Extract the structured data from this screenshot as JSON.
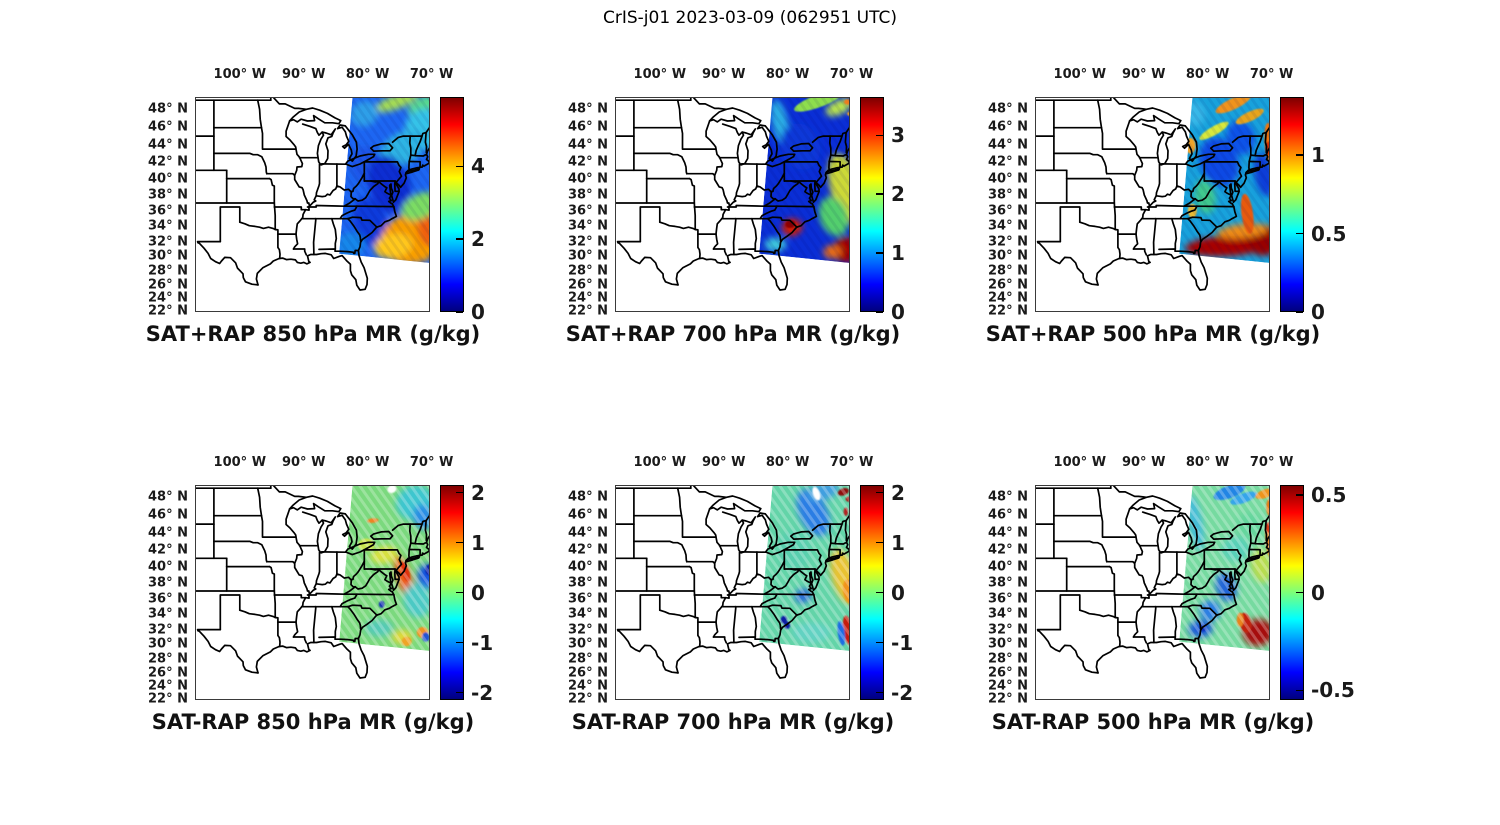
{
  "figure_title": "CrIS-j01 2023-03-09 (062951 UTC)",
  "colors": {
    "background": "#ffffff",
    "text": "#000000",
    "frame": "#3a3a3a",
    "state_lines": "#000000",
    "jet_top_to_bottom": [
      "#7F0000",
      "#FF0000",
      "#FFFF00",
      "#7CFF79",
      "#00FFFF",
      "#0000FF",
      "#00007F"
    ]
  },
  "axes": {
    "lon_ticks": [
      {
        "v": 100,
        "label": "100° W"
      },
      {
        "v": 90,
        "label": "90° W"
      },
      {
        "v": 80,
        "label": "80° W"
      },
      {
        "v": 70,
        "label": "70° W"
      }
    ],
    "lat_ticks": [
      {
        "v": 48,
        "label": "48° N"
      },
      {
        "v": 46,
        "label": "46° N"
      },
      {
        "v": 44,
        "label": "44° N"
      },
      {
        "v": 42,
        "label": "42° N"
      },
      {
        "v": 40,
        "label": "40° N"
      },
      {
        "v": 38,
        "label": "38° N"
      },
      {
        "v": 36,
        "label": "36° N"
      },
      {
        "v": 34,
        "label": "34° N"
      },
      {
        "v": 32,
        "label": "32° N"
      },
      {
        "v": 30,
        "label": "30° N"
      },
      {
        "v": 28,
        "label": "28° N"
      },
      {
        "v": 26,
        "label": "26° N"
      },
      {
        "v": 24,
        "label": "24° N"
      },
      {
        "v": 22,
        "label": "22° N"
      }
    ]
  },
  "chart_data": {
    "type": "heatmap",
    "title": "CrIS-j01 2023-03-09 (062951 UTC)",
    "description": "Six-panel map figure of CrIS-j01 satellite sounder water-vapor mixing ratio (g/kg) over the eastern United States with US state boundaries. Top row: SAT+RAP retrieved mixing ratio at 850, 700 and 500 hPa. Bottom row: SAT minus RAP difference at the same pressure levels. The satellite swath covers roughly 84W-70W and 30N-49.5N. Jet colormap. Swath features are [lonW, latN, radius_lon_deg, radius_lat_deg, rotation_deg, color].",
    "basemap": "US state boundaries, eastern CONUS, white land/ocean",
    "lon_range_w": [
      107,
      70.25
    ],
    "lat_range_n": [
      21.85,
      49.35
    ],
    "grid": false,
    "swath_polygon": [
      [
        82.3,
        49.9
      ],
      [
        68.5,
        49.9
      ],
      [
        68.5,
        28.9
      ],
      [
        84.45,
        30.35
      ]
    ],
    "panels": [
      {
        "id": "sat-plus-rap-850",
        "title": "SAT+RAP 850 hPa MR (g/kg)",
        "colorbar": {
          "min": 0,
          "max": 5.9,
          "ticks": [
            0,
            2,
            4
          ],
          "tick_labels": [
            "0",
            "2",
            "4"
          ]
        },
        "swath": {
          "base_color": "#1d66f2",
          "features": [
            [
              75.5,
              48.8,
              3.5,
              0.9,
              -20,
              "#a6dd52"
            ],
            [
              71.3,
              48.4,
              2.6,
              1.1,
              -25,
              "#59d98f"
            ],
            [
              80.5,
              47.5,
              2.2,
              1.6,
              -25,
              "#2f9fe8"
            ],
            [
              71.0,
              45.8,
              3.2,
              2.6,
              -15,
              "#35c3e8"
            ],
            [
              74.5,
              43.6,
              4.0,
              2.0,
              -30,
              "#2fb4e4"
            ],
            [
              80.0,
              41.5,
              2.5,
              2.5,
              -20,
              "#1b55e8"
            ],
            [
              76.6,
              39.3,
              3.2,
              3.8,
              -20,
              "#0a2ed2"
            ],
            [
              79.6,
              34.6,
              2.6,
              3.2,
              -15,
              "#0b3bdc"
            ],
            [
              73.0,
              32.4,
              5.0,
              3.2,
              -12,
              "#f89d06"
            ],
            [
              70.4,
              33.9,
              1.8,
              2.4,
              -5,
              "#ef5f0e"
            ],
            [
              76.0,
              31.4,
              3.0,
              1.6,
              -10,
              "#ffc81a"
            ],
            [
              71.7,
              36.6,
              3.2,
              1.6,
              -25,
              "#7bdc64"
            ],
            [
              82.6,
              31.6,
              2.2,
              1.6,
              -5,
              "#1787ea"
            ]
          ]
        }
      },
      {
        "id": "sat-plus-rap-700",
        "title": "SAT+RAP 700 hPa MR (g/kg)",
        "colorbar": {
          "min": 0,
          "max": 3.65,
          "ticks": [
            0,
            1,
            2,
            3
          ],
          "tick_labels": [
            "0",
            "1",
            "2",
            "3"
          ]
        },
        "swath": {
          "base_color": "#0a2ed6",
          "features": [
            [
              75.2,
              48.9,
              4.0,
              0.8,
              -20,
              "#8ede4e"
            ],
            [
              72.0,
              48.2,
              2.2,
              0.9,
              -25,
              "#b9e44e"
            ],
            [
              70.6,
              48.8,
              0.6,
              0.35,
              0,
              "#ef7b1d"
            ],
            [
              70.2,
              47.5,
              0.5,
              0.3,
              0,
              "#eda21e"
            ],
            [
              81.2,
              46.5,
              1.3,
              3.0,
              -12,
              "#2aaee4"
            ],
            [
              78.0,
              43.8,
              3.0,
              3.0,
              -20,
              "#0a38d8"
            ],
            [
              70.9,
              38.8,
              2.4,
              4.6,
              -16,
              "#ccd838"
            ],
            [
              72.8,
              35.3,
              2.2,
              2.6,
              -20,
              "#52cf6d"
            ],
            [
              79.3,
              33.9,
              1.6,
              1.1,
              -10,
              "#d81f02"
            ],
            [
              79.6,
              34.3,
              0.8,
              0.5,
              -10,
              "#8f0000"
            ],
            [
              81.9,
              31.6,
              1.7,
              0.9,
              0,
              "#3ec4da"
            ],
            [
              70.8,
              30.9,
              2.2,
              1.6,
              -8,
              "#a50303"
            ],
            [
              73.0,
              30.6,
              1.4,
              0.9,
              -5,
              "#e56a15"
            ]
          ]
        }
      },
      {
        "id": "sat-plus-rap-500",
        "title": "SAT+RAP 500 hPa MR (g/kg)",
        "colorbar": {
          "min": 0,
          "max": 1.37,
          "ticks": [
            0,
            0.5,
            1
          ],
          "tick_labels": [
            "0",
            "0.5",
            "1"
          ]
        },
        "swath": {
          "base_color": "#18a2dc",
          "features": [
            [
              78.2,
              42.0,
              3.0,
              3.2,
              -20,
              "#0a4ae4"
            ],
            [
              74.8,
              44.8,
              2.2,
              2.2,
              -20,
              "#0c52e8"
            ],
            [
              71.2,
              40.5,
              1.5,
              2.8,
              -10,
              "#0a3cd8"
            ],
            [
              82.0,
              47.5,
              1.6,
              1.6,
              -10,
              "#38b8e8"
            ],
            [
              76.0,
              48.6,
              3.0,
              0.7,
              -25,
              "#f0931a"
            ],
            [
              73.4,
              47.2,
              2.4,
              0.6,
              -25,
              "#e8a51f"
            ],
            [
              79.0,
              45.6,
              2.6,
              0.55,
              -30,
              "#d8e83a"
            ],
            [
              70.3,
              44.2,
              0.8,
              2.6,
              -5,
              "#ef750f"
            ],
            [
              70.4,
              43.6,
              0.6,
              0.9,
              0,
              "#d62d06"
            ],
            [
              73.8,
              35.6,
              0.9,
              2.6,
              -8,
              "#e85a0e"
            ],
            [
              80.4,
              37.8,
              1.6,
              2.2,
              -10,
              "#3fc98c"
            ],
            [
              77.0,
              31.4,
              6.5,
              1.3,
              -3,
              "#a60000"
            ],
            [
              71.3,
              32.2,
              2.6,
              2.0,
              -8,
              "#970000"
            ],
            [
              74.5,
              33.4,
              4.0,
              0.9,
              -6,
              "#ee8c14"
            ],
            [
              82.7,
              43.9,
              0.8,
              1.0,
              0,
              "#efa32b"
            ],
            [
              82.4,
              36.0,
              0.7,
              0.9,
              0,
              "#e8bb35"
            ]
          ]
        }
      },
      {
        "id": "sat-minus-rap-850",
        "title": "SAT-RAP 850 hPa MR (g/kg)",
        "colorbar": {
          "min": -2.15,
          "max": 2.15,
          "ticks": [
            -2,
            -1,
            0,
            1,
            2
          ],
          "tick_labels": [
            "-2",
            "-1",
            "0",
            "1",
            "2"
          ]
        },
        "swath": {
          "base_color": "#7bd97e",
          "features": [
            [
              72.6,
              47.4,
              3.0,
              2.2,
              -20,
              "#3cc6cf"
            ],
            [
              71.3,
              45.8,
              1.6,
              1.6,
              -10,
              "#2b8ce4"
            ],
            [
              79.2,
              45.4,
              0.9,
              0.3,
              -5,
              "#ef8221"
            ],
            [
              77.4,
              41.4,
              2.2,
              1.1,
              -10,
              "#d8e040"
            ],
            [
              80.2,
              42.6,
              1.3,
              0.8,
              0,
              "#c9e44f"
            ],
            [
              74.3,
              38.6,
              1.1,
              2.9,
              -18,
              "#f05a17"
            ],
            [
              74.1,
              39.4,
              0.6,
              1.3,
              -18,
              "#e03107"
            ],
            [
              70.8,
              38.8,
              1.4,
              1.6,
              0,
              "#1354e0"
            ],
            [
              70.3,
              39.6,
              0.7,
              0.7,
              0,
              "#0a24a8"
            ],
            [
              72.2,
              35.8,
              2.2,
              2.2,
              -10,
              "#4cc9c4"
            ],
            [
              74.6,
              31.0,
              1.6,
              0.9,
              0,
              "#e0d838"
            ],
            [
              71.4,
              31.6,
              0.9,
              0.7,
              0,
              "#ef9322"
            ],
            [
              73.9,
              30.4,
              0.8,
              0.6,
              0,
              "#efa428"
            ],
            [
              70.9,
              31.0,
              0.6,
              0.6,
              0,
              "#2353d2"
            ],
            [
              78.2,
              32.2,
              2.2,
              1.1,
              0,
              "#54cab6"
            ],
            [
              77.8,
              35.3,
              0.45,
              0.45,
              0,
              "#1233b2"
            ],
            [
              76.2,
              48.9,
              0.7,
              0.5,
              -20,
              "#ffffff"
            ]
          ]
        }
      },
      {
        "id": "sat-minus-rap-700",
        "title": "SAT-RAP 700 hPa MR (g/kg)",
        "colorbar": {
          "min": -2.15,
          "max": 2.15,
          "ticks": [
            -2,
            -1,
            0,
            1,
            2
          ],
          "tick_labels": [
            "-2",
            "-1",
            "0",
            "1",
            "2"
          ]
        },
        "swath": {
          "base_color": "#63d4a8",
          "features": [
            [
              76.0,
              46.3,
              2.2,
              3.2,
              -25,
              "#2b7de4"
            ],
            [
              74.5,
              48.6,
              2.6,
              1.1,
              -20,
              "#3f9fe0"
            ],
            [
              71.3,
              48.6,
              0.9,
              0.45,
              -20,
              "#8f0f0f"
            ],
            [
              70.4,
              47.8,
              0.55,
              0.35,
              0,
              "#a51414"
            ],
            [
              70.9,
              46.4,
              0.35,
              0.55,
              0,
              "#b32020"
            ],
            [
              75.5,
              48.4,
              0.55,
              0.9,
              -20,
              "#ffffff"
            ],
            [
              71.2,
              38.8,
              1.9,
              3.6,
              -15,
              "#e8c233"
            ],
            [
              70.4,
              36.9,
              0.9,
              1.6,
              -10,
              "#f0941c"
            ],
            [
              77.6,
              36.4,
              1.3,
              0.9,
              -20,
              "#2b6cd8"
            ],
            [
              80.6,
              33.3,
              0.5,
              0.5,
              0,
              "#0a1ba5"
            ],
            [
              80.1,
              32.6,
              0.5,
              0.5,
              0,
              "#0a1ba5"
            ],
            [
              70.6,
              31.9,
              0.7,
              1.9,
              -8,
              "#c61c08"
            ],
            [
              71.6,
              31.5,
              0.55,
              1.6,
              -8,
              "#1b6ce4"
            ],
            [
              76.3,
              31.6,
              3.0,
              1.3,
              0,
              "#62d2c2"
            ],
            [
              79.0,
              42.0,
              2.6,
              2.6,
              -10,
              "#59cfae"
            ]
          ]
        }
      },
      {
        "id": "sat-minus-rap-500",
        "title": "SAT-RAP 500 hPa MR (g/kg)",
        "colorbar": {
          "min": -0.55,
          "max": 0.55,
          "ticks": [
            -0.5,
            0,
            0.5
          ],
          "tick_labels": [
            "-0.5",
            "0",
            "0.5"
          ]
        },
        "swath": {
          "base_color": "#76daa0",
          "features": [
            [
              76.6,
              48.6,
              2.6,
              0.8,
              -20,
              "#2385e4"
            ],
            [
              74.4,
              47.9,
              2.2,
              0.6,
              -20,
              "#35a5ea"
            ],
            [
              71.0,
              48.4,
              1.6,
              0.55,
              -20,
              "#ef941f"
            ],
            [
              70.3,
              46.9,
              0.55,
              1.1,
              0,
              "#e87c16"
            ],
            [
              70.4,
              43.1,
              0.55,
              2.2,
              -5,
              "#ef8d26"
            ],
            [
              70.5,
              44.6,
              0.45,
              0.7,
              0,
              "#d63812"
            ],
            [
              81.9,
              45.1,
              1.1,
              3.6,
              -10,
              "#44bcd8"
            ],
            [
              77.1,
              37.5,
              1.6,
              1.9,
              -15,
              "#2365d8"
            ],
            [
              79.6,
              34.5,
              1.6,
              1.3,
              -15,
              "#2b7de4"
            ],
            [
              81.1,
              32.1,
              1.9,
              1.1,
              -5,
              "#1b5ad8"
            ],
            [
              80.7,
              32.2,
              0.45,
              0.45,
              0,
              "#0a30bf"
            ],
            [
              72.1,
              31.6,
              2.4,
              1.7,
              -10,
              "#a60808"
            ],
            [
              74.1,
              32.9,
              0.9,
              1.3,
              -12,
              "#c2220e"
            ],
            [
              74.9,
              33.3,
              0.55,
              0.9,
              0,
              "#e8831f"
            ],
            [
              71.6,
              40.1,
              1.6,
              2.2,
              -10,
              "#b8dc50"
            ],
            [
              75.6,
              42.1,
              2.2,
              1.6,
              -5,
              "#58d0b8"
            ],
            [
              73.5,
              44.9,
              1.9,
              1.6,
              -15,
              "#63d69d"
            ]
          ]
        }
      }
    ]
  }
}
